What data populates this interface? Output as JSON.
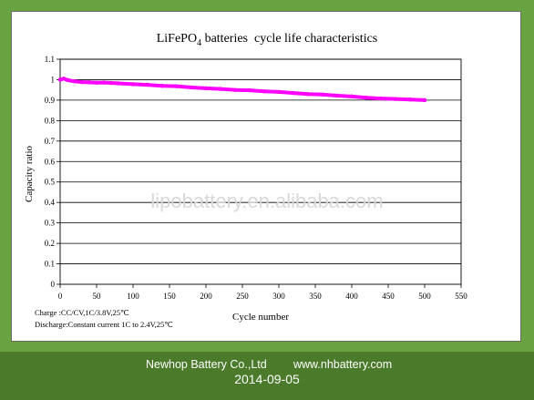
{
  "chart_data": {
    "type": "line",
    "title": "LiFePO",
    "title_subscript": "4",
    "title_suffix": " batteries  cycle life characteristics",
    "xlabel": "Cycle number",
    "ylabel": "Capacity ratio",
    "xlim": [
      0,
      550
    ],
    "ylim": [
      0,
      1.1
    ],
    "x_ticks": [
      "0",
      "50",
      "100",
      "150",
      "200",
      "250",
      "300",
      "350",
      "400",
      "450",
      "500",
      "550"
    ],
    "y_ticks": [
      "0",
      "0.1",
      "0.2",
      "0.3",
      "0.4",
      "0.5",
      "0.6",
      "0.7",
      "0.8",
      "0.9",
      "1",
      "1.1"
    ],
    "grid": "horizontal",
    "series": [
      {
        "color": "#ff00ff",
        "x": [
          0,
          5,
          10,
          20,
          30,
          40,
          50,
          60,
          70,
          80,
          100,
          120,
          140,
          160,
          180,
          200,
          220,
          240,
          260,
          280,
          300,
          320,
          340,
          360,
          380,
          400,
          420,
          440,
          460,
          480,
          500
        ],
        "y": [
          1.0,
          1.005,
          0.998,
          0.992,
          0.988,
          0.987,
          0.985,
          0.986,
          0.984,
          0.982,
          0.978,
          0.975,
          0.97,
          0.968,
          0.962,
          0.958,
          0.955,
          0.95,
          0.948,
          0.943,
          0.94,
          0.935,
          0.93,
          0.927,
          0.922,
          0.918,
          0.912,
          0.908,
          0.906,
          0.903,
          0.9
        ]
      }
    ],
    "notes": [
      "Charge :CC/CV,1C/3.8V,25℃",
      "Discharge:Constant current 1C to 2.4V,25℃"
    ]
  },
  "watermark": "lipobattery.en.alibaba.com",
  "footer": {
    "company": "Newhop Battery Co.,Ltd",
    "website": "www.nhbattery.com",
    "date": "2014-09-05"
  }
}
